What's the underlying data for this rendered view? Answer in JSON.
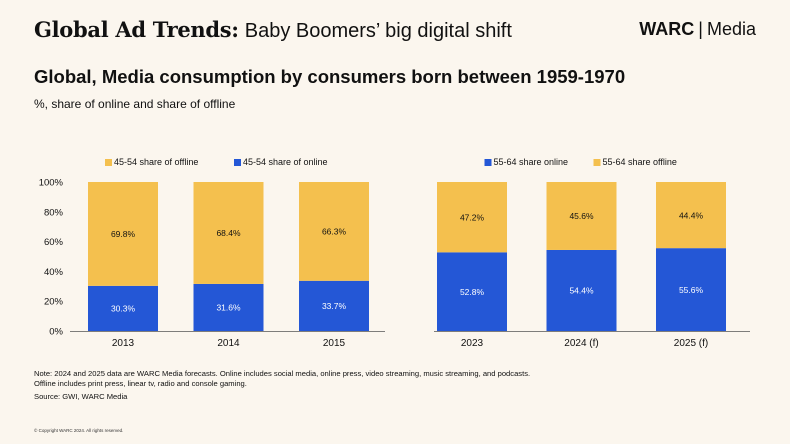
{
  "header": {
    "title_bold": "Global Ad Trends:",
    "title_rest": "Baby Boomers’ big digital shift",
    "brand_strong": "WARC",
    "brand_sep": "|",
    "brand_rest": "Media"
  },
  "chart_title": "Global, Media consumption by consumers born between 1959-1970",
  "chart_subtitle": "%, share of online and share of offline",
  "colors": {
    "offline": "#f4c04e",
    "online": "#2457d6",
    "axis": "#555555",
    "text": "#111111"
  },
  "chart_data": [
    {
      "type": "bar",
      "stacked": true,
      "categories": [
        "2013",
        "2014",
        "2015"
      ],
      "series": [
        {
          "name": "45-54 share of online",
          "color": "#2457d6",
          "values": [
            30.3,
            31.6,
            33.7
          ],
          "labels": [
            "30.3%",
            "31.6%",
            "33.7%"
          ]
        },
        {
          "name": "45-54 share of offline",
          "color": "#f4c04e",
          "values": [
            69.8,
            68.4,
            66.3
          ],
          "labels": [
            "69.8%",
            "68.4%",
            "66.3%"
          ]
        }
      ],
      "legend": [
        "45-54 share of offline",
        "45-54 share of online"
      ],
      "legend_position": "top-center",
      "yticks": [
        "0%",
        "20%",
        "40%",
        "60%",
        "80%",
        "100%"
      ],
      "ylim": [
        0,
        100
      ],
      "grid": false
    },
    {
      "type": "bar",
      "stacked": true,
      "categories": [
        "2023",
        "2024 (f)",
        "2025 (f)"
      ],
      "series": [
        {
          "name": "55-64 share online",
          "color": "#2457d6",
          "values": [
            52.8,
            54.4,
            55.6
          ],
          "labels": [
            "52.8%",
            "54.4%",
            "55.6%"
          ]
        },
        {
          "name": "55-64 share offline",
          "color": "#f4c04e",
          "values": [
            47.2,
            45.6,
            44.4
          ],
          "labels": [
            "47.2%",
            "45.6%",
            "44.4%"
          ]
        }
      ],
      "legend": [
        "55-64 share online",
        "55-64 share offline"
      ],
      "legend_position": "top-center",
      "ylim": [
        0,
        100
      ],
      "grid": false
    }
  ],
  "notes": {
    "line1": "Note: 2024 and 2025 data are WARC Media forecasts. Online includes social media, online press, video streaming, music streaming, and podcasts.",
    "line2": "Offline includes print press, linear tv, radio and console gaming.",
    "source": "Source: GWI, WARC Media",
    "copyright": "© Copyright WARC 2024. All rights reserved."
  }
}
